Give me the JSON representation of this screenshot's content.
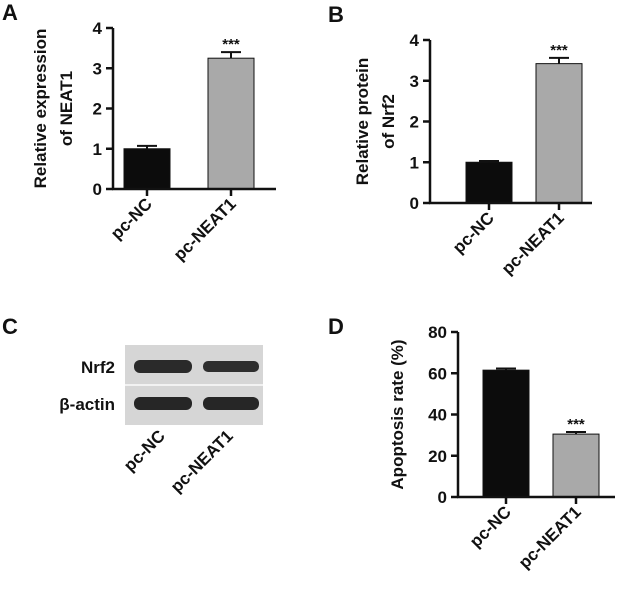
{
  "panel_letters": [
    "A",
    "B",
    "C",
    "D"
  ],
  "colors": {
    "pc_nc": "#0c0c0c",
    "pc_neat1": "#a9a9a9",
    "axis": "#111111",
    "blot_bg": "#d6d6d6",
    "band": "#2a2a2a"
  },
  "chart_data": [
    {
      "panel": "A",
      "type": "bar",
      "ylabel_lines": [
        "Relative expression",
        "of NEAT1"
      ],
      "categories": [
        "pc-NC",
        "pc-NEAT1"
      ],
      "values": [
        1.0,
        3.25
      ],
      "errors": [
        0.07,
        0.15
      ],
      "significance": [
        "",
        "***"
      ],
      "ylim": [
        0,
        4
      ],
      "yticks": [
        "0",
        "1",
        "2",
        "3",
        "4"
      ]
    },
    {
      "panel": "B",
      "type": "bar",
      "ylabel_lines": [
        "Relative protein",
        "of Nrf2"
      ],
      "categories": [
        "pc-NC",
        "pc-NEAT1"
      ],
      "values": [
        1.0,
        3.42
      ],
      "errors": [
        0.03,
        0.14
      ],
      "significance": [
        "",
        "***"
      ],
      "ylim": [
        0,
        4
      ],
      "yticks": [
        "0",
        "1",
        "2",
        "3",
        "4"
      ]
    },
    {
      "panel": "D",
      "type": "bar",
      "ylabel_lines": [
        "Apoptosis rate (%)"
      ],
      "categories": [
        "pc-NC",
        "pc-NEAT1"
      ],
      "values": [
        61.5,
        30.5
      ],
      "errors": [
        0.8,
        1.0
      ],
      "significance": [
        "",
        "***"
      ],
      "ylim": [
        0,
        80
      ],
      "yticks": [
        "0",
        "20",
        "40",
        "60",
        "80"
      ]
    }
  ],
  "blot": {
    "rows": [
      "Nrf2",
      "β-actin"
    ],
    "lanes": [
      "pc-NC",
      "pc-NEAT1"
    ]
  }
}
